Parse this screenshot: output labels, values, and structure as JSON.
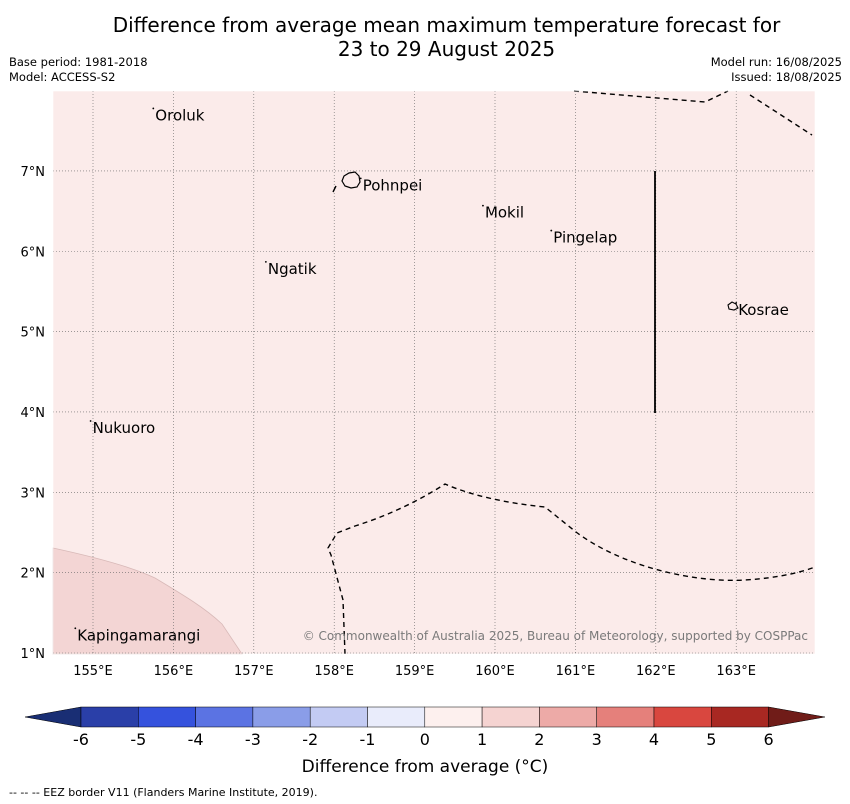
{
  "title_line1": "Difference from average mean maximum temperature forecast for",
  "title_line2": "23 to 29 August 2025",
  "meta_left": [
    "Base period: 1981-2018",
    "Model: ACCESS-S2"
  ],
  "meta_right": [
    "Model run: 16/08/2025",
    "Issued: 18/08/2025"
  ],
  "lon_labels": [
    "155°E",
    "156°E",
    "157°E",
    "158°E",
    "159°E",
    "160°E",
    "161°E",
    "162°E",
    "163°E"
  ],
  "lat_labels": [
    "7°N",
    "6°N",
    "5°N",
    "4°N",
    "3°N",
    "2°N",
    "1°N"
  ],
  "places": [
    {
      "name": "Oroluk",
      "lon": 155.75,
      "lat": 7.74
    },
    {
      "name": "Pohnpei",
      "lon": 158.33,
      "lat": 6.87
    },
    {
      "name": "Mokil",
      "lon": 159.85,
      "lat": 6.53
    },
    {
      "name": "Pingelap",
      "lon": 160.7,
      "lat": 6.22
    },
    {
      "name": "Ngatik",
      "lon": 157.15,
      "lat": 5.83
    },
    {
      "name": "Kosrae",
      "lon": 163.0,
      "lat": 5.32
    },
    {
      "name": "Nukuoro",
      "lon": 154.97,
      "lat": 3.85
    },
    {
      "name": "Kapingamarangi",
      "lon": 154.78,
      "lat": 1.27
    }
  ],
  "copyright": "© Commonwealth of Australia 2025, Bureau of Meteorology, supported by COSPPac",
  "colorbar": {
    "label": "Difference from average (°C)",
    "ticks": [
      "-6",
      "-5",
      "-4",
      "-3",
      "-2",
      "-1",
      "0",
      "1",
      "2",
      "3",
      "4",
      "5",
      "6"
    ],
    "colors": [
      "#2a3fa8",
      "#3552dd",
      "#5b73e3",
      "#8a9de8",
      "#c3cbf3",
      "#e9ecfb",
      "#fdf0ee",
      "#f5d3d1",
      "#edaaa7",
      "#e5807b",
      "#d9473f",
      "#a82822"
    ],
    "under_color": "#192e74",
    "over_color": "#701c18"
  },
  "background_color": "#fbebea",
  "region_color": "#f3d5d4",
  "footer": "--  --  -- EEZ border V11 (Flanders Marine Institute, 2019)."
}
